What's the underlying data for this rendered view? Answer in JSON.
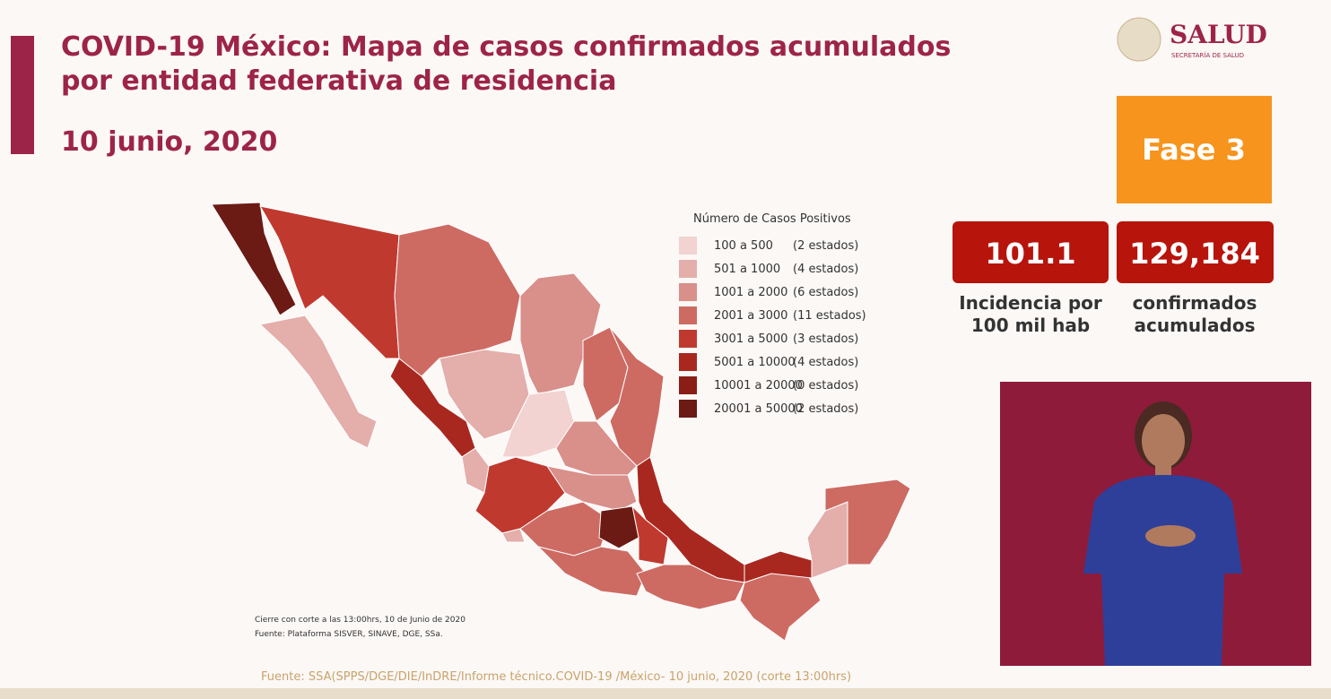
{
  "header": {
    "title": [
      "COVID-19 México: Mapa de casos confirmados acumulados",
      "por entidad federativa de residencia"
    ],
    "date": "10 junio, 2020"
  },
  "logo": {
    "name": "SALUD",
    "subtitle": "SECRETARÍA DE SALUD"
  },
  "phase": "Fase 3",
  "stats": [
    {
      "value": "101.1",
      "label": [
        "Incidencia por",
        "100 mil hab"
      ]
    },
    {
      "value": "129,184",
      "label": [
        "confirmados",
        "acumulados"
      ]
    }
  ],
  "map": {
    "legend_title": "Número de Casos Positivos",
    "legend": [
      {
        "range": "100 a 500",
        "count": "(2 estados)",
        "color": "#f2d3d1"
      },
      {
        "range": "501 a 1000",
        "count": "(4 estados)",
        "color": "#e4aeab"
      },
      {
        "range": "1001 a 2000",
        "count": "(6 estados)",
        "color": "#d98f8a"
      },
      {
        "range": "2001 a 3000",
        "count": "(11 estados)",
        "color": "#cd6b63"
      },
      {
        "range": "3001 a 5000",
        "count": "(3 estados)",
        "color": "#c0392f"
      },
      {
        "range": "5001 a 10000",
        "count": "(4 estados)",
        "color": "#a82820"
      },
      {
        "range": "10001 a 20000",
        "count": "(0 estados)",
        "color": "#8a1d16"
      },
      {
        "range": "20001 a 50000",
        "count": "(2 estados)",
        "color": "#6b1a14"
      }
    ],
    "note": "Cierre con corte a las 13:00hrs, 10 de Junio de 2020",
    "source": "Fuente: Plataforma SISVER, SINAVE, DGE, SSa."
  },
  "footer": "Fuente: SSA(SPPS/DGE/DIE/InDRE/Informe técnico.COVID-19 /México- 10 junio, 2020 (corte 13:00hrs)"
}
